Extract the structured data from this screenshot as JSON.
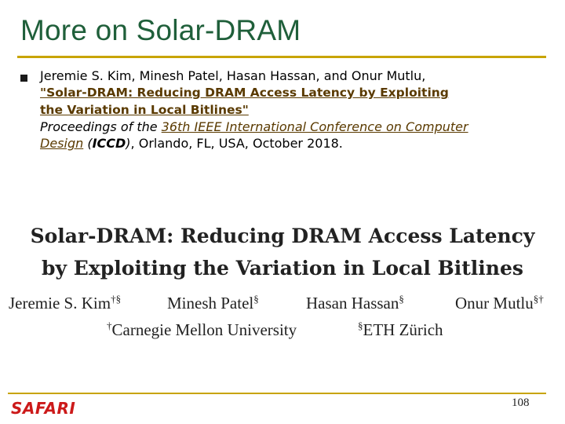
{
  "slide": {
    "title": "More on Solar-DRAM",
    "page_number": "108",
    "logo_text": "SAFARI"
  },
  "reference": {
    "authors": "Jeremie S. Kim, Minesh Patel, Hasan Hassan, and Onur Mutlu,",
    "paper_link_line1": "\"Solar-DRAM: Reducing DRAM Access Latency by Exploiting",
    "paper_link_line2": "the Variation in Local Bitlines\"",
    "proceedings_prefix": "Proceedings of the ",
    "conference_link_line1": "36th IEEE International Conference on Computer",
    "conference_link_line2": "Design",
    "open_paren": " (",
    "conference_abbr": "ICCD",
    "close_paren": ")",
    "location_date": ", Orlando, FL, USA, October 2018."
  },
  "paper": {
    "title_line1": "Solar-DRAM: Reducing DRAM Access Latency",
    "title_line2": "by Exploiting the Variation in Local Bitlines",
    "authors": [
      {
        "name": "Jeremie S. Kim",
        "marks": "†§"
      },
      {
        "name": "Minesh Patel",
        "marks": "§"
      },
      {
        "name": "Hasan Hassan",
        "marks": "§"
      },
      {
        "name": "Onur Mutlu",
        "marks": "§†"
      }
    ],
    "affiliations": [
      {
        "mark": "†",
        "name": "Carnegie Mellon University"
      },
      {
        "mark": "§",
        "name": "ETH Zürich"
      }
    ]
  },
  "colors": {
    "title": "#1f5f3a",
    "rule": "#c8a400",
    "logo": "#cc1a1a",
    "link": "#5a3a00"
  }
}
